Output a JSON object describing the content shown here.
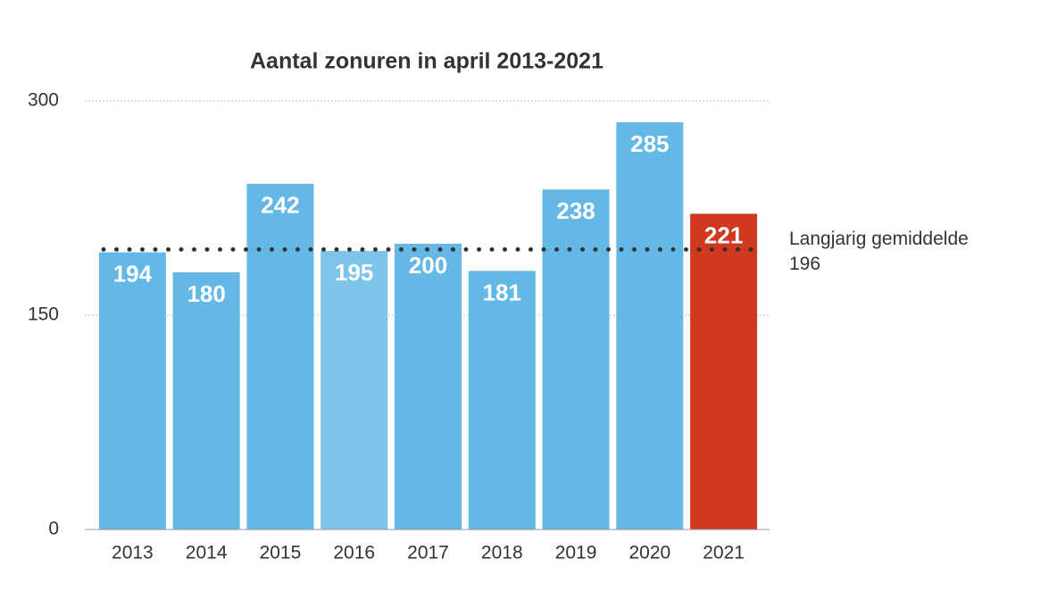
{
  "chart_data": {
    "type": "bar",
    "title": "Aantal zonuren in april 2013-2021",
    "categories": [
      "2013",
      "2014",
      "2015",
      "2016",
      "2017",
      "2018",
      "2019",
      "2020",
      "2021"
    ],
    "values": [
      194,
      180,
      242,
      195,
      200,
      181,
      238,
      285,
      221
    ],
    "colors": [
      "#63b8e5",
      "#63b8e5",
      "#63b8e5",
      "#7cc4ea",
      "#63b8e5",
      "#63b8e5",
      "#63b8e5",
      "#63b8e5",
      "#d0391f"
    ],
    "ylim": [
      0,
      300
    ],
    "yticks": [
      0,
      150,
      300
    ],
    "grid": true,
    "reference_line": {
      "label": "Langjarig gemiddelde",
      "value": 196,
      "color": "#333333"
    }
  }
}
